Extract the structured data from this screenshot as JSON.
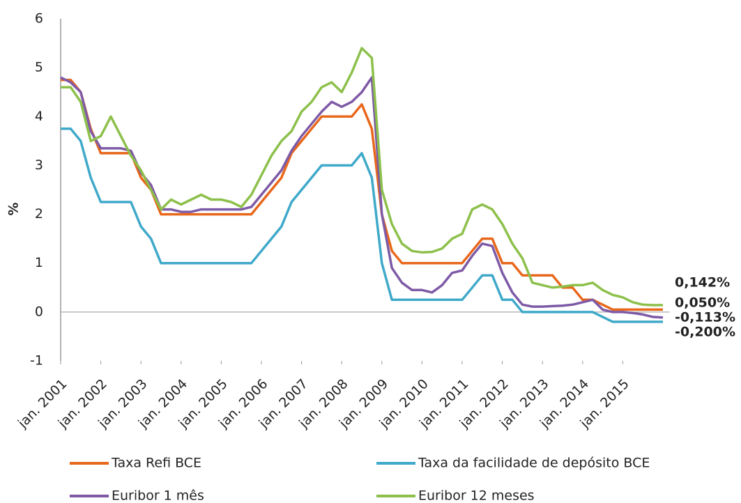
{
  "chart_data": {
    "type": "line",
    "ylabel": "%",
    "x": [
      "2001-01",
      "2001-04",
      "2001-07",
      "2001-10",
      "2002-01",
      "2002-04",
      "2002-07",
      "2002-10",
      "2003-01",
      "2003-04",
      "2003-07",
      "2003-10",
      "2004-01",
      "2004-04",
      "2004-07",
      "2004-10",
      "2005-01",
      "2005-04",
      "2005-07",
      "2005-10",
      "2006-01",
      "2006-04",
      "2006-07",
      "2006-10",
      "2007-01",
      "2007-04",
      "2007-07",
      "2007-10",
      "2008-01",
      "2008-04",
      "2008-07",
      "2008-10",
      "2009-01",
      "2009-04",
      "2009-07",
      "2009-10",
      "2010-01",
      "2010-04",
      "2010-07",
      "2010-10",
      "2011-01",
      "2011-04",
      "2011-07",
      "2011-10",
      "2012-01",
      "2012-04",
      "2012-07",
      "2012-10",
      "2013-01",
      "2013-04",
      "2013-07",
      "2013-10",
      "2014-01",
      "2014-04",
      "2014-07",
      "2014-10",
      "2015-01",
      "2015-04",
      "2015-07",
      "2015-10",
      "2016-01"
    ],
    "xlim": [
      "2001-01",
      "2016-03"
    ],
    "xticks": [
      {
        "value": "2001-01",
        "label": "jan. 2001"
      },
      {
        "value": "2002-01",
        "label": "jan. 2002"
      },
      {
        "value": "2003-01",
        "label": "jan. 2003"
      },
      {
        "value": "2004-01",
        "label": "jan. 2004"
      },
      {
        "value": "2005-01",
        "label": "jan. 2005"
      },
      {
        "value": "2006-01",
        "label": "jan. 2006"
      },
      {
        "value": "2007-01",
        "label": "jan. 2007"
      },
      {
        "value": "2008-01",
        "label": "jan. 2008"
      },
      {
        "value": "2009-01",
        "label": "jan. 2009"
      },
      {
        "value": "2010-01",
        "label": "jan. 2010"
      },
      {
        "value": "2011-01",
        "label": "jan. 2011"
      },
      {
        "value": "2012-01",
        "label": "jan. 2012"
      },
      {
        "value": "2013-01",
        "label": "jan. 2013"
      },
      {
        "value": "2014-01",
        "label": "jan. 2014"
      },
      {
        "value": "2015-01",
        "label": "jan. 2015"
      }
    ],
    "ylim": [
      -1,
      6
    ],
    "yticks": [
      -1,
      0,
      1,
      2,
      3,
      4,
      5,
      6
    ],
    "series": [
      {
        "name": "Taxa Refi BCE",
        "color": "#e8671b",
        "end_label": "0,050%",
        "values": [
          4.75,
          4.75,
          4.5,
          3.75,
          3.25,
          3.25,
          3.25,
          3.25,
          2.75,
          2.5,
          2.0,
          2.0,
          2.0,
          2.0,
          2.0,
          2.0,
          2.0,
          2.0,
          2.0,
          2.0,
          2.25,
          2.5,
          2.75,
          3.25,
          3.5,
          3.75,
          4.0,
          4.0,
          4.0,
          4.0,
          4.25,
          3.75,
          2.0,
          1.25,
          1.0,
          1.0,
          1.0,
          1.0,
          1.0,
          1.0,
          1.0,
          1.25,
          1.5,
          1.5,
          1.0,
          1.0,
          0.75,
          0.75,
          0.75,
          0.75,
          0.5,
          0.5,
          0.25,
          0.25,
          0.15,
          0.05,
          0.05,
          0.05,
          0.05,
          0.05,
          0.05
        ]
      },
      {
        "name": "Taxa da facilidade de depósito BCE",
        "color": "#3fa9c9",
        "end_label": "-0,200%",
        "values": [
          3.75,
          3.75,
          3.5,
          2.75,
          2.25,
          2.25,
          2.25,
          2.25,
          1.75,
          1.5,
          1.0,
          1.0,
          1.0,
          1.0,
          1.0,
          1.0,
          1.0,
          1.0,
          1.0,
          1.0,
          1.25,
          1.5,
          1.75,
          2.25,
          2.5,
          2.75,
          3.0,
          3.0,
          3.0,
          3.0,
          3.25,
          2.75,
          1.0,
          0.25,
          0.25,
          0.25,
          0.25,
          0.25,
          0.25,
          0.25,
          0.25,
          0.5,
          0.75,
          0.75,
          0.25,
          0.25,
          0,
          0,
          0,
          0,
          0,
          0,
          0,
          0,
          -0.1,
          -0.2,
          -0.2,
          -0.2,
          -0.2,
          -0.2,
          -0.2
        ]
      },
      {
        "name": "Euribor 1 mês",
        "color": "#7e5aa6",
        "end_label": "-0,113%",
        "values": [
          4.8,
          4.7,
          4.5,
          3.7,
          3.35,
          3.35,
          3.35,
          3.3,
          2.85,
          2.6,
          2.1,
          2.1,
          2.05,
          2.05,
          2.1,
          2.1,
          2.1,
          2.1,
          2.1,
          2.15,
          2.4,
          2.65,
          2.9,
          3.3,
          3.6,
          3.85,
          4.1,
          4.3,
          4.2,
          4.3,
          4.5,
          4.8,
          2.0,
          0.9,
          0.6,
          0.45,
          0.45,
          0.4,
          0.55,
          0.8,
          0.85,
          1.15,
          1.4,
          1.35,
          0.8,
          0.4,
          0.15,
          0.11,
          0.11,
          0.12,
          0.13,
          0.15,
          0.2,
          0.25,
          0.05,
          0.0,
          0.0,
          -0.02,
          -0.05,
          -0.1,
          -0.113
        ]
      },
      {
        "name": "Euribor 12 meses",
        "color": "#8dc04b",
        "end_label": "0,142%",
        "values": [
          4.6,
          4.6,
          4.3,
          3.5,
          3.6,
          4.0,
          3.6,
          3.2,
          2.9,
          2.5,
          2.1,
          2.3,
          2.2,
          2.3,
          2.4,
          2.3,
          2.3,
          2.25,
          2.15,
          2.4,
          2.8,
          3.2,
          3.5,
          3.7,
          4.1,
          4.3,
          4.6,
          4.7,
          4.5,
          4.9,
          5.4,
          5.2,
          2.5,
          1.8,
          1.4,
          1.25,
          1.22,
          1.23,
          1.3,
          1.5,
          1.6,
          2.1,
          2.2,
          2.1,
          1.8,
          1.4,
          1.1,
          0.6,
          0.55,
          0.5,
          0.52,
          0.55,
          0.55,
          0.6,
          0.45,
          0.35,
          0.3,
          0.2,
          0.15,
          0.14,
          0.142
        ]
      }
    ]
  }
}
